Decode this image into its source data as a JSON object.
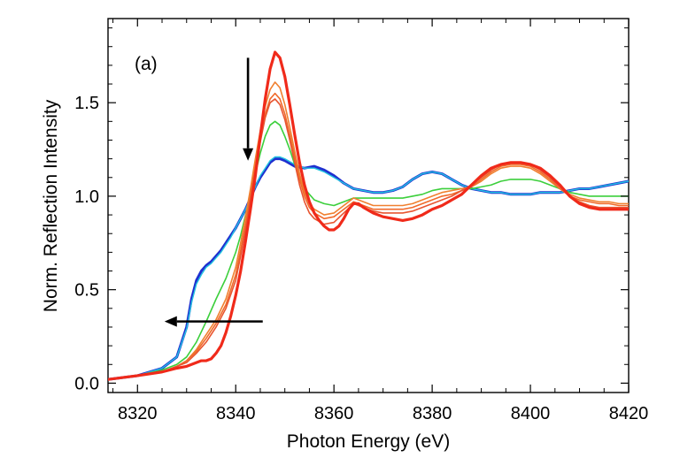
{
  "chart_data": {
    "type": "line",
    "title": "",
    "panel_label": "(a)",
    "xlabel": "Photon Energy (eV)",
    "ylabel": "Norm. Reflection Intensity",
    "xlim": [
      8314,
      8420
    ],
    "ylim": [
      -0.05,
      1.95
    ],
    "xticks": [
      8320,
      8340,
      8360,
      8380,
      8400,
      8420
    ],
    "yticks": [
      0.0,
      0.5,
      1.0,
      1.5
    ],
    "ytick_labels": [
      "0.0",
      "0.5",
      "1.0",
      "1.5"
    ],
    "grid": false,
    "legend": "none",
    "series": [
      {
        "color": "#1f2fd0",
        "width": 3.0,
        "x": [
          8314,
          8320,
          8325,
          8328,
          8330,
          8331,
          8332,
          8333,
          8334,
          8335,
          8336,
          8337,
          8338,
          8339,
          8340,
          8341,
          8342,
          8343,
          8344,
          8345,
          8346,
          8347,
          8348,
          8349,
          8350,
          8352,
          8354,
          8356,
          8358,
          8360,
          8362,
          8364,
          8366,
          8368,
          8370,
          8372,
          8374,
          8376,
          8378,
          8380,
          8382,
          8384,
          8386,
          8388,
          8390,
          8392,
          8394,
          8396,
          8398,
          8400,
          8402,
          8404,
          8406,
          8408,
          8410,
          8412,
          8414,
          8416,
          8418,
          8420
        ],
        "y": [
          0.02,
          0.04,
          0.08,
          0.14,
          0.3,
          0.45,
          0.55,
          0.6,
          0.63,
          0.65,
          0.68,
          0.71,
          0.75,
          0.79,
          0.83,
          0.88,
          0.93,
          0.99,
          1.05,
          1.1,
          1.14,
          1.18,
          1.2,
          1.2,
          1.19,
          1.16,
          1.15,
          1.16,
          1.14,
          1.11,
          1.07,
          1.04,
          1.03,
          1.02,
          1.02,
          1.03,
          1.05,
          1.09,
          1.12,
          1.13,
          1.12,
          1.09,
          1.06,
          1.04,
          1.03,
          1.02,
          1.02,
          1.01,
          1.01,
          1.01,
          1.02,
          1.02,
          1.02,
          1.03,
          1.04,
          1.04,
          1.05,
          1.06,
          1.07,
          1.08
        ]
      },
      {
        "color": "#22c4e0",
        "width": 1.4,
        "x": [
          8314,
          8320,
          8325,
          8328,
          8330,
          8331,
          8332,
          8333,
          8334,
          8335,
          8336,
          8337,
          8338,
          8339,
          8340,
          8341,
          8342,
          8343,
          8344,
          8345,
          8346,
          8347,
          8348,
          8349,
          8350,
          8352,
          8354,
          8356,
          8358,
          8360,
          8362,
          8364,
          8366,
          8368,
          8370,
          8372,
          8374,
          8376,
          8378,
          8380,
          8382,
          8384,
          8386,
          8388,
          8390,
          8392,
          8394,
          8396,
          8398,
          8400,
          8402,
          8404,
          8406,
          8408,
          8410,
          8412,
          8414,
          8416,
          8418,
          8420
        ],
        "y": [
          0.02,
          0.04,
          0.08,
          0.14,
          0.29,
          0.43,
          0.53,
          0.58,
          0.62,
          0.64,
          0.67,
          0.7,
          0.74,
          0.78,
          0.83,
          0.88,
          0.93,
          0.99,
          1.05,
          1.11,
          1.15,
          1.19,
          1.21,
          1.21,
          1.2,
          1.17,
          1.15,
          1.15,
          1.13,
          1.1,
          1.07,
          1.04,
          1.03,
          1.02,
          1.02,
          1.03,
          1.05,
          1.09,
          1.12,
          1.13,
          1.12,
          1.09,
          1.06,
          1.04,
          1.03,
          1.02,
          1.02,
          1.01,
          1.01,
          1.01,
          1.02,
          1.02,
          1.02,
          1.03,
          1.04,
          1.04,
          1.05,
          1.06,
          1.07,
          1.08
        ]
      },
      {
        "color": "#3ccf3c",
        "width": 1.6,
        "x": [
          8314,
          8320,
          8325,
          8328,
          8330,
          8332,
          8334,
          8336,
          8338,
          8340,
          8341,
          8342,
          8343,
          8344,
          8345,
          8346,
          8347,
          8348,
          8349,
          8350,
          8351,
          8352,
          8353,
          8354,
          8356,
          8358,
          8360,
          8362,
          8364,
          8366,
          8368,
          8370,
          8372,
          8374,
          8376,
          8378,
          8380,
          8382,
          8384,
          8386,
          8388,
          8390,
          8392,
          8394,
          8396,
          8398,
          8400,
          8402,
          8404,
          8406,
          8408,
          8410,
          8412,
          8414,
          8416,
          8418,
          8420
        ],
        "y": [
          0.02,
          0.04,
          0.07,
          0.1,
          0.14,
          0.22,
          0.33,
          0.45,
          0.56,
          0.7,
          0.79,
          0.9,
          1.0,
          1.12,
          1.23,
          1.32,
          1.38,
          1.4,
          1.38,
          1.32,
          1.25,
          1.17,
          1.1,
          1.04,
          0.98,
          0.96,
          0.95,
          0.97,
          0.99,
          0.99,
          0.99,
          0.99,
          0.99,
          0.99,
          1.0,
          1.01,
          1.03,
          1.04,
          1.04,
          1.04,
          1.04,
          1.05,
          1.06,
          1.08,
          1.09,
          1.09,
          1.09,
          1.08,
          1.06,
          1.04,
          1.02,
          1.01,
          1.0,
          1.0,
          1.0,
          1.0,
          1.0
        ]
      },
      {
        "color": "#f08030",
        "width": 1.6,
        "x": [
          8314,
          8320,
          8325,
          8328,
          8330,
          8332,
          8334,
          8336,
          8338,
          8340,
          8341,
          8342,
          8343,
          8344,
          8345,
          8346,
          8347,
          8348,
          8349,
          8350,
          8351,
          8352,
          8353,
          8354,
          8355,
          8356,
          8358,
          8360,
          8362,
          8364,
          8366,
          8368,
          8370,
          8372,
          8374,
          8376,
          8378,
          8380,
          8382,
          8384,
          8386,
          8388,
          8390,
          8392,
          8394,
          8396,
          8398,
          8400,
          8402,
          8404,
          8406,
          8408,
          8410,
          8412,
          8414,
          8416,
          8418,
          8420
        ],
        "y": [
          0.02,
          0.04,
          0.06,
          0.09,
          0.12,
          0.18,
          0.26,
          0.34,
          0.45,
          0.62,
          0.75,
          0.89,
          1.04,
          1.2,
          1.35,
          1.48,
          1.57,
          1.61,
          1.58,
          1.49,
          1.37,
          1.24,
          1.12,
          1.02,
          0.96,
          0.93,
          0.9,
          0.91,
          0.95,
          0.99,
          0.97,
          0.95,
          0.95,
          0.95,
          0.95,
          0.96,
          0.98,
          1.0,
          1.02,
          1.03,
          1.04,
          1.05,
          1.08,
          1.12,
          1.15,
          1.16,
          1.16,
          1.15,
          1.12,
          1.08,
          1.04,
          1.01,
          0.99,
          0.98,
          0.97,
          0.97,
          0.96,
          0.96
        ]
      },
      {
        "color": "#f06a2a",
        "width": 1.6,
        "x": [
          8314,
          8320,
          8325,
          8328,
          8330,
          8332,
          8334,
          8336,
          8338,
          8340,
          8341,
          8342,
          8343,
          8344,
          8345,
          8346,
          8347,
          8348,
          8349,
          8350,
          8351,
          8352,
          8353,
          8354,
          8355,
          8356,
          8358,
          8360,
          8362,
          8364,
          8366,
          8368,
          8370,
          8372,
          8374,
          8376,
          8378,
          8380,
          8382,
          8384,
          8386,
          8388,
          8390,
          8392,
          8394,
          8396,
          8398,
          8400,
          8402,
          8404,
          8406,
          8408,
          8410,
          8412,
          8414,
          8416,
          8418,
          8420
        ],
        "y": [
          0.02,
          0.04,
          0.06,
          0.09,
          0.12,
          0.17,
          0.24,
          0.32,
          0.42,
          0.58,
          0.71,
          0.85,
          1.0,
          1.16,
          1.31,
          1.44,
          1.52,
          1.55,
          1.52,
          1.44,
          1.33,
          1.21,
          1.09,
          1.0,
          0.94,
          0.91,
          0.88,
          0.89,
          0.93,
          0.97,
          0.95,
          0.93,
          0.93,
          0.93,
          0.93,
          0.94,
          0.96,
          0.98,
          1.0,
          1.01,
          1.03,
          1.05,
          1.09,
          1.13,
          1.16,
          1.17,
          1.17,
          1.16,
          1.13,
          1.09,
          1.04,
          1.0,
          0.98,
          0.97,
          0.96,
          0.96,
          0.95,
          0.95
        ]
      },
      {
        "color": "#e85530",
        "width": 1.6,
        "x": [
          8314,
          8320,
          8325,
          8328,
          8330,
          8332,
          8334,
          8336,
          8338,
          8340,
          8341,
          8342,
          8343,
          8344,
          8345,
          8346,
          8347,
          8348,
          8349,
          8350,
          8351,
          8352,
          8353,
          8354,
          8355,
          8356,
          8358,
          8360,
          8362,
          8364,
          8366,
          8368,
          8370,
          8372,
          8374,
          8376,
          8378,
          8380,
          8382,
          8384,
          8386,
          8388,
          8390,
          8392,
          8394,
          8396,
          8398,
          8400,
          8402,
          8404,
          8406,
          8408,
          8410,
          8412,
          8414,
          8416,
          8418,
          8420
        ],
        "y": [
          0.02,
          0.04,
          0.06,
          0.09,
          0.11,
          0.16,
          0.22,
          0.3,
          0.4,
          0.55,
          0.68,
          0.82,
          0.98,
          1.14,
          1.29,
          1.42,
          1.5,
          1.52,
          1.49,
          1.41,
          1.3,
          1.18,
          1.06,
          0.97,
          0.91,
          0.88,
          0.85,
          0.86,
          0.91,
          0.96,
          0.94,
          0.92,
          0.91,
          0.91,
          0.91,
          0.92,
          0.94,
          0.96,
          0.98,
          1.0,
          1.03,
          1.06,
          1.1,
          1.14,
          1.17,
          1.18,
          1.18,
          1.17,
          1.14,
          1.1,
          1.05,
          1.0,
          0.97,
          0.95,
          0.94,
          0.94,
          0.94,
          0.94
        ]
      },
      {
        "color": "#f02a1a",
        "width": 3.2,
        "x": [
          8314,
          8320,
          8325,
          8328,
          8330,
          8332,
          8333,
          8334,
          8335,
          8336,
          8337,
          8338,
          8339,
          8340,
          8341,
          8342,
          8343,
          8344,
          8345,
          8346,
          8347,
          8348,
          8349,
          8350,
          8351,
          8352,
          8353,
          8354,
          8355,
          8356,
          8357,
          8358,
          8359,
          8360,
          8361,
          8362,
          8363,
          8364,
          8365,
          8366,
          8368,
          8370,
          8372,
          8374,
          8376,
          8378,
          8380,
          8382,
          8384,
          8386,
          8388,
          8390,
          8392,
          8394,
          8396,
          8398,
          8400,
          8402,
          8404,
          8406,
          8408,
          8410,
          8412,
          8414,
          8416,
          8418,
          8420
        ],
        "y": [
          0.02,
          0.04,
          0.06,
          0.08,
          0.09,
          0.11,
          0.12,
          0.12,
          0.13,
          0.16,
          0.2,
          0.27,
          0.36,
          0.47,
          0.6,
          0.76,
          0.93,
          1.11,
          1.32,
          1.52,
          1.68,
          1.77,
          1.74,
          1.64,
          1.49,
          1.33,
          1.18,
          1.06,
          0.97,
          0.91,
          0.87,
          0.84,
          0.82,
          0.82,
          0.84,
          0.88,
          0.93,
          0.96,
          0.96,
          0.94,
          0.91,
          0.89,
          0.88,
          0.87,
          0.88,
          0.9,
          0.93,
          0.95,
          0.98,
          1.01,
          1.06,
          1.11,
          1.15,
          1.17,
          1.18,
          1.18,
          1.17,
          1.15,
          1.11,
          1.06,
          1.0,
          0.96,
          0.94,
          0.93,
          0.93,
          0.93,
          0.93
        ]
      }
    ],
    "annotations": [
      {
        "type": "arrow",
        "direction": "down",
        "x_from": 8342.5,
        "y_from": 1.74,
        "x_to": 8342.5,
        "y_to": 1.19
      },
      {
        "type": "arrow",
        "direction": "left",
        "x_from": 8345.5,
        "y_from": 0.33,
        "x_to": 8325.5,
        "y_to": 0.33
      }
    ]
  }
}
